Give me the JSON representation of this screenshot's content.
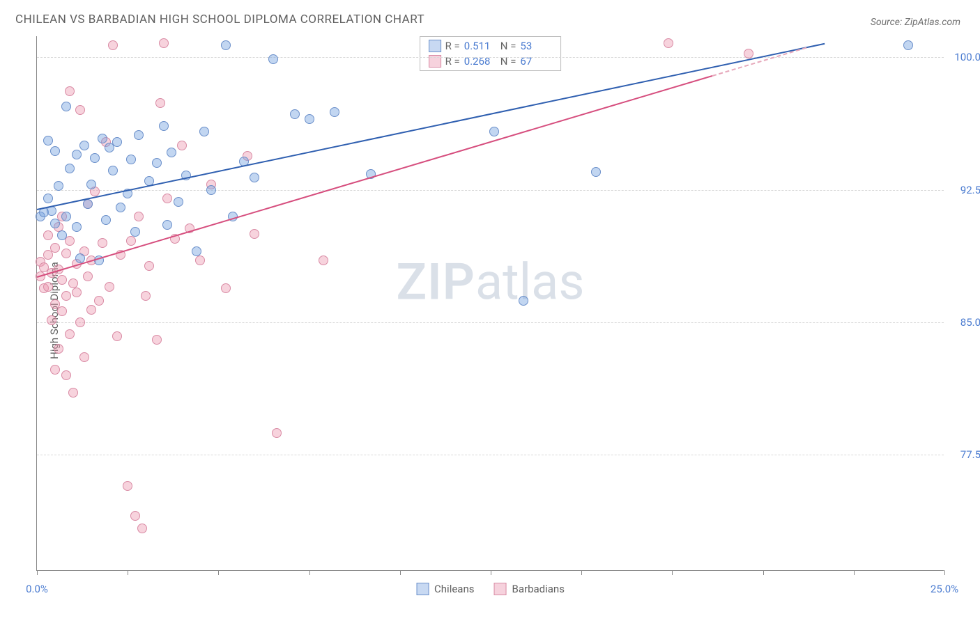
{
  "title": "CHILEAN VS BARBADIAN HIGH SCHOOL DIPLOMA CORRELATION CHART",
  "source": "Source: ZipAtlas.com",
  "y_axis_label": "High School Diploma",
  "watermark_bold": "ZIP",
  "watermark_rest": "atlas",
  "chart": {
    "type": "scatter",
    "x_range": [
      0,
      25
    ],
    "y_range": [
      70.9,
      101.2
    ],
    "y_ticks": [
      {
        "v": 100.0,
        "label": "100.0%"
      },
      {
        "v": 92.5,
        "label": "92.5%"
      },
      {
        "v": 85.0,
        "label": "85.0%"
      },
      {
        "v": 77.5,
        "label": "77.5%"
      }
    ],
    "x_ticks": [
      0,
      2.5,
      5,
      7.5,
      10,
      12.5,
      15,
      17.5,
      20,
      22.5,
      25
    ],
    "x_tick_labels": [
      {
        "v": 0,
        "label": "0.0%"
      },
      {
        "v": 25,
        "label": "25.0%"
      }
    ],
    "series": [
      {
        "name": "Chileans",
        "marker_fill": "rgba(120,165,225,0.45)",
        "marker_stroke": "#6a8fca",
        "line_color": "#2f5fb0",
        "line_dash_color": "#6a8fca",
        "swatch_fill": "#c8d9f2",
        "swatch_border": "#6a8fca",
        "r_value": "0.511",
        "n_value": "53",
        "trend": {
          "x1": 0,
          "y1": 91.4,
          "x2": 21.7,
          "y2": 100.8
        },
        "points": [
          [
            0.1,
            91.0
          ],
          [
            0.2,
            91.2
          ],
          [
            0.3,
            95.3
          ],
          [
            0.3,
            92.0
          ],
          [
            0.4,
            91.3
          ],
          [
            0.5,
            94.7
          ],
          [
            0.5,
            90.6
          ],
          [
            0.6,
            92.7
          ],
          [
            0.7,
            89.9
          ],
          [
            0.8,
            91.0
          ],
          [
            0.8,
            97.2
          ],
          [
            0.9,
            93.7
          ],
          [
            1.1,
            94.5
          ],
          [
            1.1,
            90.4
          ],
          [
            1.2,
            88.6
          ],
          [
            1.3,
            95.0
          ],
          [
            1.4,
            91.7
          ],
          [
            1.5,
            92.8
          ],
          [
            1.6,
            94.3
          ],
          [
            1.7,
            88.5
          ],
          [
            1.8,
            95.4
          ],
          [
            1.9,
            90.8
          ],
          [
            2.0,
            94.9
          ],
          [
            2.1,
            93.6
          ],
          [
            2.2,
            95.2
          ],
          [
            2.3,
            91.5
          ],
          [
            2.5,
            92.3
          ],
          [
            2.6,
            94.2
          ],
          [
            2.7,
            90.1
          ],
          [
            2.8,
            95.6
          ],
          [
            3.1,
            93.0
          ],
          [
            3.3,
            94.0
          ],
          [
            3.5,
            96.1
          ],
          [
            3.6,
            90.5
          ],
          [
            3.7,
            94.6
          ],
          [
            3.9,
            91.8
          ],
          [
            4.1,
            93.3
          ],
          [
            4.4,
            89.0
          ],
          [
            4.6,
            95.8
          ],
          [
            4.8,
            92.5
          ],
          [
            5.2,
            100.7
          ],
          [
            5.4,
            91.0
          ],
          [
            5.7,
            94.1
          ],
          [
            6.0,
            93.2
          ],
          [
            6.5,
            99.9
          ],
          [
            7.1,
            96.8
          ],
          [
            7.5,
            96.5
          ],
          [
            8.2,
            96.9
          ],
          [
            9.2,
            93.4
          ],
          [
            12.6,
            95.8
          ],
          [
            13.4,
            86.2
          ],
          [
            15.4,
            93.5
          ],
          [
            24.0,
            100.7
          ]
        ]
      },
      {
        "name": "Barbadians",
        "marker_fill": "rgba(235,150,175,0.42)",
        "marker_stroke": "#d98aa4",
        "line_color": "#d64e7e",
        "line_dash_color": "#e6a8bb",
        "swatch_fill": "#f6d2dd",
        "swatch_border": "#d98aa4",
        "r_value": "0.268",
        "n_value": "67",
        "trend": {
          "x1": 0,
          "y1": 87.6,
          "x2": 18.6,
          "y2": 99.0
        },
        "trend_dash": {
          "x1": 18.6,
          "y1": 99.0,
          "x2": 21.2,
          "y2": 100.6
        },
        "points": [
          [
            0.1,
            88.4
          ],
          [
            0.1,
            87.6
          ],
          [
            0.2,
            88.1
          ],
          [
            0.2,
            86.9
          ],
          [
            0.3,
            88.8
          ],
          [
            0.3,
            87.0
          ],
          [
            0.3,
            89.9
          ],
          [
            0.4,
            85.1
          ],
          [
            0.4,
            87.8
          ],
          [
            0.5,
            86.0
          ],
          [
            0.5,
            89.2
          ],
          [
            0.5,
            82.3
          ],
          [
            0.6,
            88.0
          ],
          [
            0.6,
            90.4
          ],
          [
            0.6,
            83.5
          ],
          [
            0.7,
            87.4
          ],
          [
            0.7,
            85.6
          ],
          [
            0.7,
            91.0
          ],
          [
            0.8,
            82.0
          ],
          [
            0.8,
            88.9
          ],
          [
            0.8,
            86.5
          ],
          [
            0.9,
            89.6
          ],
          [
            0.9,
            84.3
          ],
          [
            0.9,
            98.1
          ],
          [
            1.0,
            87.2
          ],
          [
            1.0,
            81.0
          ],
          [
            1.1,
            88.3
          ],
          [
            1.1,
            86.7
          ],
          [
            1.2,
            97.0
          ],
          [
            1.2,
            85.0
          ],
          [
            1.3,
            89.0
          ],
          [
            1.3,
            83.0
          ],
          [
            1.4,
            87.6
          ],
          [
            1.4,
            91.7
          ],
          [
            1.5,
            85.7
          ],
          [
            1.5,
            88.5
          ],
          [
            1.6,
            92.4
          ],
          [
            1.7,
            86.2
          ],
          [
            1.8,
            89.5
          ],
          [
            1.9,
            95.2
          ],
          [
            2.0,
            87.0
          ],
          [
            2.1,
            100.7
          ],
          [
            2.2,
            84.2
          ],
          [
            2.3,
            88.8
          ],
          [
            2.5,
            75.7
          ],
          [
            2.6,
            89.6
          ],
          [
            2.7,
            74.0
          ],
          [
            2.8,
            91.0
          ],
          [
            2.9,
            73.3
          ],
          [
            3.0,
            86.5
          ],
          [
            3.1,
            88.2
          ],
          [
            3.3,
            84.0
          ],
          [
            3.4,
            97.4
          ],
          [
            3.5,
            100.8
          ],
          [
            3.6,
            92.0
          ],
          [
            3.8,
            89.7
          ],
          [
            4.0,
            95.0
          ],
          [
            4.2,
            90.3
          ],
          [
            4.5,
            88.5
          ],
          [
            4.8,
            92.8
          ],
          [
            5.2,
            86.9
          ],
          [
            5.8,
            94.4
          ],
          [
            6.0,
            90.0
          ],
          [
            6.6,
            78.7
          ],
          [
            7.9,
            88.5
          ],
          [
            17.4,
            100.8
          ],
          [
            19.6,
            100.2
          ]
        ]
      }
    ]
  }
}
